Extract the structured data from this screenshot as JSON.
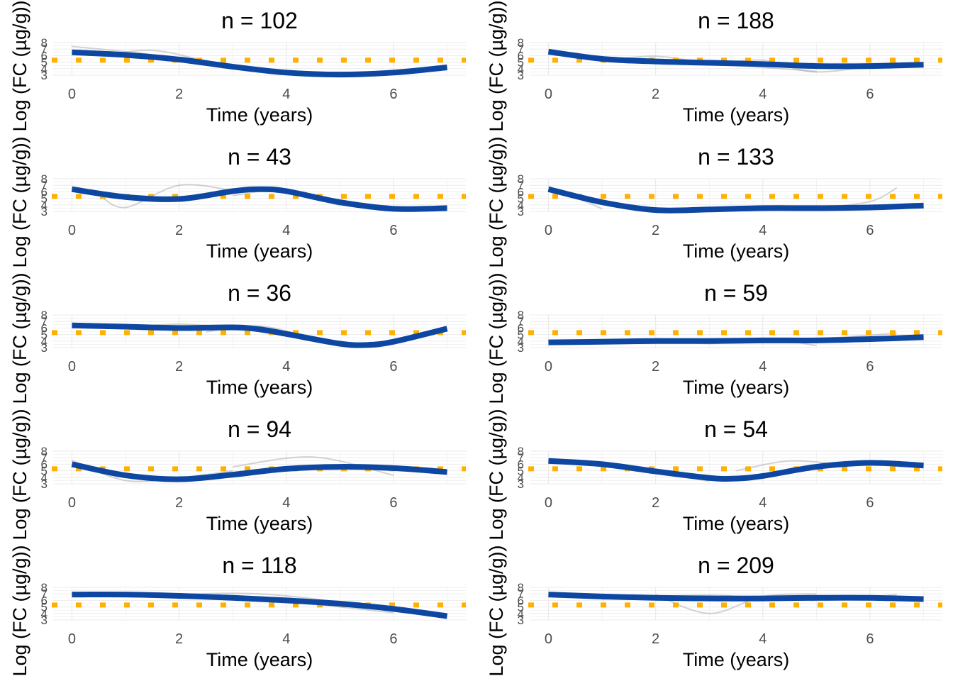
{
  "chart_data": [
    {
      "type": "line",
      "title": "n = 102",
      "xlabel": "Time (years)",
      "ylabel": "Log (FC (µg/g))",
      "xlim": [
        -0.35,
        7.35
      ],
      "ylim": [
        3,
        8
      ],
      "x_ticks": [
        0,
        2,
        4,
        6
      ],
      "y_ticks": [
        3,
        4,
        5,
        6,
        7,
        8
      ],
      "reference_line": 5.3,
      "fit": {
        "x": [
          0,
          1,
          2,
          3,
          4,
          5,
          6,
          7
        ],
        "y": [
          6.5,
          6.1,
          5.4,
          4.3,
          3.4,
          3.1,
          3.4,
          4.2
        ]
      },
      "subjects": [
        {
          "x": [
            0,
            1,
            2,
            3
          ],
          "y": [
            7.4,
            6.6,
            5.6,
            4.0
          ]
        },
        {
          "x": [
            0.5,
            1.5,
            2.5,
            3.5
          ],
          "y": [
            6.0,
            6.8,
            5.2,
            3.6
          ]
        }
      ]
    },
    {
      "type": "line",
      "title": "n = 188",
      "xlabel": "Time (years)",
      "ylabel": "Log (FC (µg/g))",
      "xlim": [
        -0.35,
        7.35
      ],
      "ylim": [
        3,
        8
      ],
      "x_ticks": [
        0,
        2,
        4,
        6
      ],
      "y_ticks": [
        3,
        4,
        5,
        6,
        7,
        8
      ],
      "reference_line": 5.3,
      "fit": {
        "x": [
          0,
          1,
          2,
          3,
          4,
          5,
          6,
          7
        ],
        "y": [
          6.6,
          5.5,
          5.1,
          4.9,
          4.7,
          4.4,
          4.4,
          4.6
        ]
      },
      "subjects": [
        {
          "x": [
            1,
            2,
            3,
            4,
            5
          ],
          "y": [
            5.2,
            5.9,
            4.8,
            4.2,
            3.6
          ]
        },
        {
          "x": [
            3,
            4,
            5,
            6.5
          ],
          "y": [
            4.6,
            5.3,
            3.5,
            5.0
          ]
        }
      ]
    },
    {
      "type": "line",
      "title": "n = 43",
      "xlabel": "Time (years)",
      "ylabel": "Log (FC (µg/g))",
      "xlim": [
        -0.35,
        7.35
      ],
      "ylim": [
        3,
        8
      ],
      "x_ticks": [
        0,
        2,
        4,
        6
      ],
      "y_ticks": [
        3,
        4,
        5,
        6,
        7,
        8
      ],
      "reference_line": 5.3,
      "fit": {
        "x": [
          0,
          1,
          2,
          3,
          3.5,
          4,
          5,
          6,
          7
        ],
        "y": [
          6.4,
          5.2,
          4.9,
          6.1,
          6.4,
          6.1,
          4.4,
          3.4,
          3.5
        ]
      },
      "subjects": [
        {
          "x": [
            0.5,
            1,
            2,
            3
          ],
          "y": [
            5.6,
            3.6,
            7.0,
            6.2
          ]
        },
        {
          "x": [
            3,
            4,
            5
          ],
          "y": [
            5.4,
            6.3,
            3.9
          ]
        }
      ]
    },
    {
      "type": "line",
      "title": "n = 133",
      "xlabel": "Time (years)",
      "ylabel": "Log (FC (µg/g))",
      "xlim": [
        -0.35,
        7.35
      ],
      "ylim": [
        3,
        8
      ],
      "x_ticks": [
        0,
        2,
        4,
        6
      ],
      "y_ticks": [
        3,
        4,
        5,
        6,
        7,
        8
      ],
      "reference_line": 5.3,
      "fit": {
        "x": [
          0,
          1,
          2,
          3,
          4,
          5,
          6,
          7
        ],
        "y": [
          6.4,
          4.4,
          3.2,
          3.3,
          3.5,
          3.5,
          3.6,
          3.9
        ]
      },
      "subjects": [
        {
          "x": [
            0,
            0.5,
            1
          ],
          "y": [
            6.8,
            5.2,
            3.4
          ]
        },
        {
          "x": [
            5,
            6,
            6.5
          ],
          "y": [
            3.5,
            4.5,
            6.6
          ]
        }
      ]
    },
    {
      "type": "line",
      "title": "n = 36",
      "xlabel": "Time (years)",
      "ylabel": "Log (FC (µg/g))",
      "xlim": [
        -0.35,
        7.35
      ],
      "ylim": [
        3,
        8
      ],
      "x_ticks": [
        0,
        2,
        4,
        6
      ],
      "y_ticks": [
        3,
        4,
        5,
        6,
        7,
        8
      ],
      "reference_line": 5.3,
      "fit": {
        "x": [
          0,
          1,
          2,
          3,
          3.5,
          4,
          5,
          5.5,
          6,
          7
        ],
        "y": [
          6.4,
          6.2,
          6.0,
          6.1,
          5.8,
          5.1,
          3.6,
          3.4,
          3.9,
          5.9
        ]
      },
      "subjects": [
        {
          "x": [
            1,
            2,
            3,
            4,
            5
          ],
          "y": [
            6.1,
            6.6,
            6.0,
            4.8,
            3.6
          ]
        },
        {
          "x": [
            2.5,
            3.5,
            4.5
          ],
          "y": [
            5.4,
            6.3,
            4.4
          ]
        }
      ]
    },
    {
      "type": "line",
      "title": "n = 59",
      "xlabel": "Time (years)",
      "ylabel": "Log (FC (µg/g))",
      "xlim": [
        -0.35,
        7.35
      ],
      "ylim": [
        3,
        8
      ],
      "x_ticks": [
        0,
        2,
        4,
        6
      ],
      "y_ticks": [
        3,
        4,
        5,
        6,
        7,
        8
      ],
      "reference_line": 5.3,
      "fit": {
        "x": [
          0,
          1,
          2,
          3,
          4,
          5,
          6,
          7
        ],
        "y": [
          3.8,
          3.9,
          4.0,
          4.0,
          4.1,
          4.1,
          4.3,
          4.6
        ]
      },
      "subjects": [
        {
          "x": [
            2,
            3,
            4,
            5
          ],
          "y": [
            4.4,
            3.6,
            4.4,
            3.3
          ]
        },
        {
          "x": [
            4.5,
            5.5,
            6.5
          ],
          "y": [
            4.0,
            4.6,
            5.2
          ]
        }
      ]
    },
    {
      "type": "line",
      "title": "n = 94",
      "xlabel": "Time (years)",
      "ylabel": "Log (FC (µg/g))",
      "xlim": [
        -0.35,
        7.35
      ],
      "ylim": [
        3,
        8
      ],
      "x_ticks": [
        0,
        2,
        4,
        6
      ],
      "y_ticks": [
        3,
        4,
        5,
        6,
        7,
        8
      ],
      "reference_line": 5.3,
      "fit": {
        "x": [
          0,
          1,
          2,
          3,
          4,
          5,
          6,
          7
        ],
        "y": [
          6.0,
          4.3,
          3.7,
          4.4,
          5.3,
          5.6,
          5.4,
          4.8
        ]
      },
      "subjects": [
        {
          "x": [
            0,
            1,
            2,
            3
          ],
          "y": [
            6.6,
            3.5,
            3.9,
            5.0
          ]
        },
        {
          "x": [
            3,
            4.5,
            6
          ],
          "y": [
            5.6,
            7.1,
            4.3
          ]
        }
      ]
    },
    {
      "type": "line",
      "title": "n = 54",
      "xlabel": "Time (years)",
      "ylabel": "Log (FC (µg/g))",
      "xlim": [
        -0.35,
        7.35
      ],
      "ylim": [
        3,
        8
      ],
      "x_ticks": [
        0,
        2,
        4,
        6
      ],
      "y_ticks": [
        3,
        4,
        5,
        6,
        7,
        8
      ],
      "reference_line": 5.3,
      "fit": {
        "x": [
          0,
          1,
          2,
          3,
          3.5,
          4,
          5,
          6,
          7
        ],
        "y": [
          6.5,
          6.0,
          4.9,
          3.9,
          3.8,
          4.2,
          5.6,
          6.2,
          5.8
        ]
      },
      "subjects": [
        {
          "x": [
            1,
            2,
            3
          ],
          "y": [
            6.0,
            4.8,
            3.4
          ]
        },
        {
          "x": [
            3.5,
            4.5,
            5.5
          ],
          "y": [
            5.0,
            6.5,
            5.9
          ]
        }
      ]
    },
    {
      "type": "line",
      "title": "n = 118",
      "xlabel": "Time (years)",
      "ylabel": "Log (FC (µg/g))",
      "xlim": [
        -0.35,
        7.35
      ],
      "ylim": [
        3,
        8
      ],
      "x_ticks": [
        0,
        2,
        4,
        6
      ],
      "y_ticks": [
        3,
        4,
        5,
        6,
        7,
        8
      ],
      "reference_line": 5.3,
      "fit": {
        "x": [
          0,
          1,
          2,
          3,
          4,
          5,
          6,
          7
        ],
        "y": [
          6.9,
          6.9,
          6.7,
          6.4,
          6.0,
          5.5,
          4.7,
          3.6
        ]
      },
      "subjects": [
        {
          "x": [
            0,
            2,
            4,
            6
          ],
          "y": [
            7.1,
            6.6,
            5.8,
            4.1
          ]
        },
        {
          "x": [
            1.5,
            3.5,
            5.5,
            6.3
          ],
          "y": [
            6.8,
            7.0,
            5.2,
            4.3
          ]
        }
      ]
    },
    {
      "type": "line",
      "title": "n = 209",
      "xlabel": "Time (years)",
      "ylabel": "Log (FC (µg/g))",
      "xlim": [
        -0.35,
        7.35
      ],
      "ylim": [
        3,
        8
      ],
      "x_ticks": [
        0,
        2,
        4,
        6
      ],
      "y_ticks": [
        3,
        4,
        5,
        6,
        7,
        8
      ],
      "reference_line": 5.3,
      "fit": {
        "x": [
          0,
          1,
          2,
          3,
          4,
          5,
          6,
          7
        ],
        "y": [
          6.9,
          6.6,
          6.4,
          6.3,
          6.3,
          6.4,
          6.4,
          6.2
        ]
      },
      "subjects": [
        {
          "x": [
            2,
            3,
            4,
            5
          ],
          "y": [
            6.9,
            4.0,
            6.6,
            7.0
          ]
        },
        {
          "x": [
            1,
            3,
            5,
            6.5
          ],
          "y": [
            6.2,
            6.8,
            6.0,
            6.9
          ]
        }
      ]
    }
  ],
  "colors": {
    "fit": "#0d47a1",
    "reference": "#ffb000",
    "subject": "#9e9e9e",
    "grid": "#ebebeb",
    "tick": "#4d4d4d"
  }
}
